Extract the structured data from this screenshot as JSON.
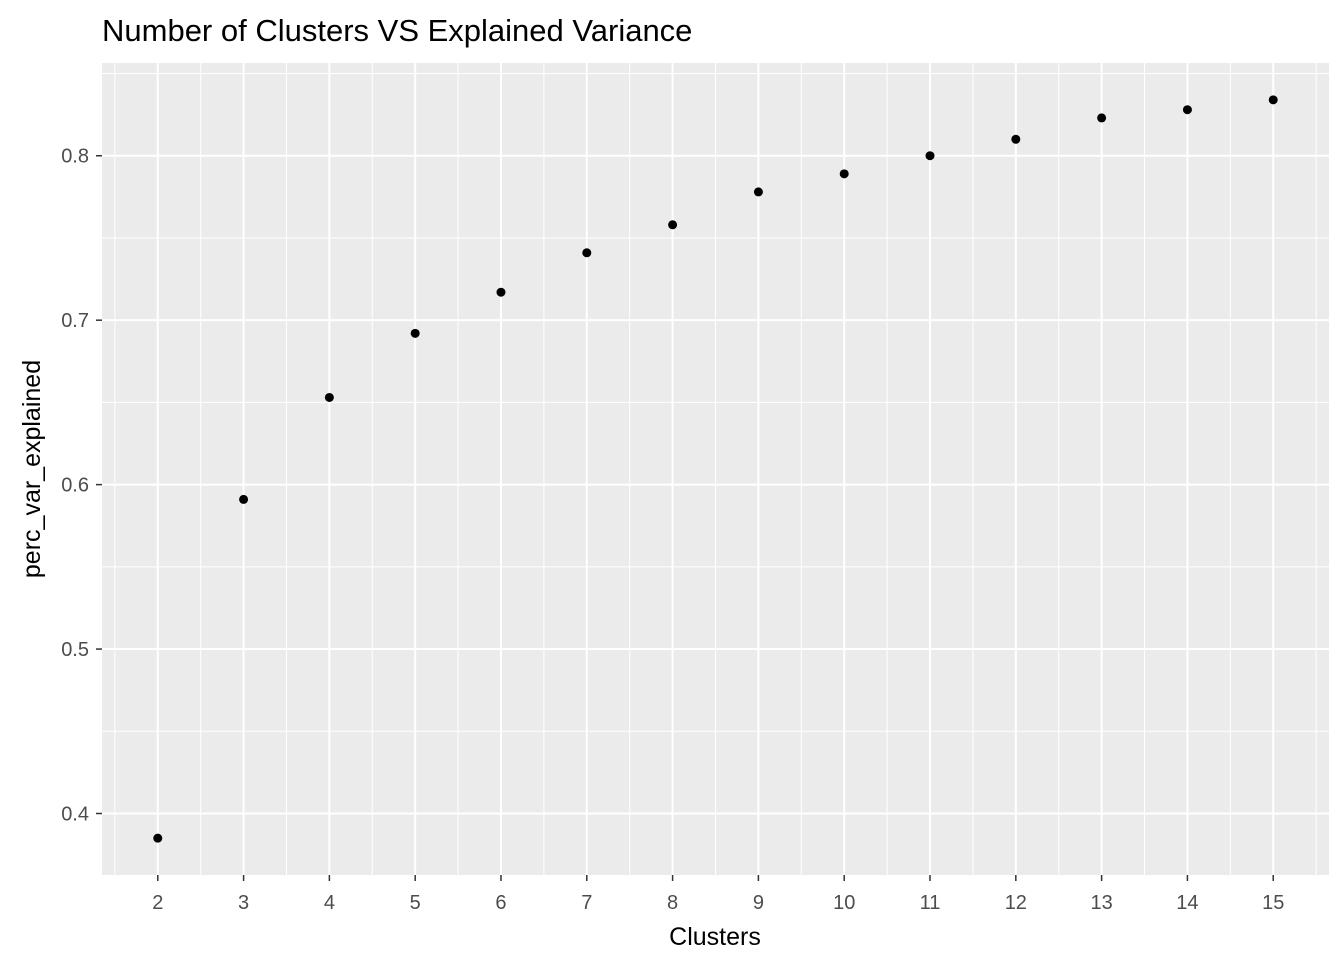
{
  "chart_data": {
    "type": "scatter",
    "title": "Number of Clusters VS Explained Variance",
    "xlabel": "Clusters",
    "ylabel": "perc_var_explained",
    "x": [
      2,
      3,
      4,
      5,
      6,
      7,
      8,
      9,
      10,
      11,
      12,
      13,
      14,
      15
    ],
    "y": [
      0.385,
      0.591,
      0.653,
      0.692,
      0.717,
      0.741,
      0.758,
      0.778,
      0.789,
      0.8,
      0.81,
      0.823,
      0.828,
      0.834
    ],
    "x_ticks": [
      "2",
      "3",
      "4",
      "5",
      "6",
      "7",
      "8",
      "9",
      "10",
      "11",
      "12",
      "13",
      "14",
      "15"
    ],
    "y_ticks": [
      "0.4",
      "0.5",
      "0.6",
      "0.7",
      "0.8"
    ],
    "xlim": [
      1.35,
      15.65
    ],
    "ylim": [
      0.3626,
      0.8564
    ],
    "grid": true,
    "legend": "none",
    "colors": {
      "panel": "#ebebeb",
      "grid": "#ffffff",
      "point": "#000000"
    }
  }
}
